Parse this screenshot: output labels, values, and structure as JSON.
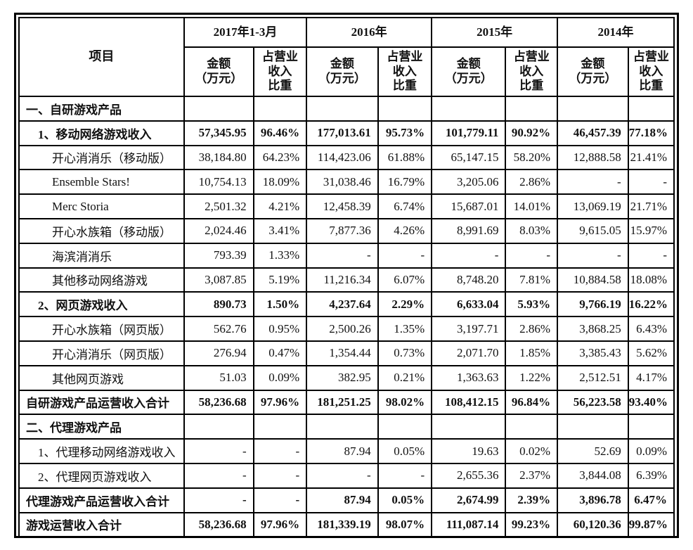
{
  "page": {
    "background_color": "#ffffff",
    "border_color": "#000000",
    "text_color": "#111111"
  },
  "table": {
    "item_header": "项目",
    "year_headers": [
      "2017年1-3月",
      "2016年",
      "2015年",
      "2014年"
    ],
    "amount_header_lines": [
      "金额",
      "（万元）"
    ],
    "ratio_header_lines": [
      "占营业",
      "收入",
      "比重"
    ],
    "rows": [
      {
        "label": "一、自研游戏产品",
        "indent": 0,
        "bold": true,
        "values": [
          "",
          "",
          "",
          "",
          "",
          "",
          "",
          ""
        ]
      },
      {
        "label": "1、移动网络游戏收入",
        "indent": 1,
        "bold": true,
        "values": [
          "57,345.95",
          "96.46%",
          "177,013.61",
          "95.73%",
          "101,779.11",
          "90.92%",
          "46,457.39",
          "77.18%"
        ]
      },
      {
        "label": "开心消消乐（移动版）",
        "indent": 2,
        "bold": false,
        "values": [
          "38,184.80",
          "64.23%",
          "114,423.06",
          "61.88%",
          "65,147.15",
          "58.20%",
          "12,888.58",
          "21.41%"
        ]
      },
      {
        "label": "Ensemble Stars!",
        "indent": 2,
        "bold": false,
        "values": [
          "10,754.13",
          "18.09%",
          "31,038.46",
          "16.79%",
          "3,205.06",
          "2.86%",
          "-",
          "-"
        ]
      },
      {
        "label": "Merc Storia",
        "indent": 2,
        "bold": false,
        "values": [
          "2,501.32",
          "4.21%",
          "12,458.39",
          "6.74%",
          "15,687.01",
          "14.01%",
          "13,069.19",
          "21.71%"
        ]
      },
      {
        "label": "开心水族箱（移动版）",
        "indent": 2,
        "bold": false,
        "values": [
          "2,024.46",
          "3.41%",
          "7,877.36",
          "4.26%",
          "8,991.69",
          "8.03%",
          "9,615.05",
          "15.97%"
        ]
      },
      {
        "label": "海滨消消乐",
        "indent": 2,
        "bold": false,
        "values": [
          "793.39",
          "1.33%",
          "-",
          "-",
          "-",
          "-",
          "-",
          "-"
        ]
      },
      {
        "label": "其他移动网络游戏",
        "indent": 2,
        "bold": false,
        "values": [
          "3,087.85",
          "5.19%",
          "11,216.34",
          "6.07%",
          "8,748.20",
          "7.81%",
          "10,884.58",
          "18.08%"
        ]
      },
      {
        "label": "2、网页游戏收入",
        "indent": 1,
        "bold": true,
        "values": [
          "890.73",
          "1.50%",
          "4,237.64",
          "2.29%",
          "6,633.04",
          "5.93%",
          "9,766.19",
          "16.22%"
        ]
      },
      {
        "label": "开心水族箱（网页版）",
        "indent": 2,
        "bold": false,
        "values": [
          "562.76",
          "0.95%",
          "2,500.26",
          "1.35%",
          "3,197.71",
          "2.86%",
          "3,868.25",
          "6.43%"
        ]
      },
      {
        "label": "开心消消乐（网页版）",
        "indent": 2,
        "bold": false,
        "values": [
          "276.94",
          "0.47%",
          "1,354.44",
          "0.73%",
          "2,071.70",
          "1.85%",
          "3,385.43",
          "5.62%"
        ]
      },
      {
        "label": "其他网页游戏",
        "indent": 2,
        "bold": false,
        "values": [
          "51.03",
          "0.09%",
          "382.95",
          "0.21%",
          "1,363.63",
          "1.22%",
          "2,512.51",
          "4.17%"
        ]
      },
      {
        "label": "自研游戏产品运营收入合计",
        "indent": 0,
        "bold": true,
        "values": [
          "58,236.68",
          "97.96%",
          "181,251.25",
          "98.02%",
          "108,412.15",
          "96.84%",
          "56,223.58",
          "93.40%"
        ]
      },
      {
        "label": "二、代理游戏产品",
        "indent": 0,
        "bold": true,
        "values": [
          "",
          "",
          "",
          "",
          "",
          "",
          "",
          ""
        ]
      },
      {
        "label": "1、代理移动网络游戏收入",
        "indent": 1,
        "bold": false,
        "values": [
          "-",
          "-",
          "87.94",
          "0.05%",
          "19.63",
          "0.02%",
          "52.69",
          "0.09%"
        ]
      },
      {
        "label": "2、代理网页游戏收入",
        "indent": 1,
        "bold": false,
        "values": [
          "-",
          "-",
          "-",
          "-",
          "2,655.36",
          "2.37%",
          "3,844.08",
          "6.39%"
        ]
      },
      {
        "label": "代理游戏产品运营收入合计",
        "indent": 0,
        "bold": true,
        "values": [
          "-",
          "-",
          "87.94",
          "0.05%",
          "2,674.99",
          "2.39%",
          "3,896.78",
          "6.47%"
        ]
      },
      {
        "label": "游戏运营收入合计",
        "indent": 0,
        "bold": true,
        "values": [
          "58,236.68",
          "97.96%",
          "181,339.19",
          "98.07%",
          "111,087.14",
          "99.23%",
          "60,120.36",
          "99.87%"
        ]
      }
    ]
  }
}
